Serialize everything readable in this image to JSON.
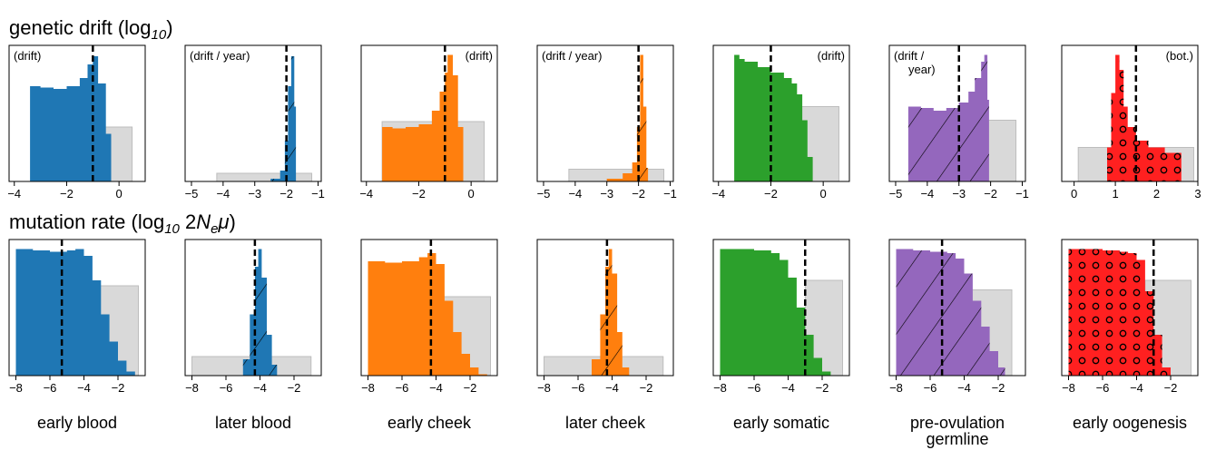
{
  "row_titles": {
    "drift_prefix": "genetic drift (log",
    "drift_base": "10",
    "drift_suffix": ")",
    "mut_prefix": "mutation rate (log",
    "mut_base": "10",
    "mut_mid": " 2",
    "mut_N": "N",
    "mut_e": "e",
    "mut_mu": "μ",
    "mut_suffix": ")"
  },
  "column_labels": [
    [
      "early blood"
    ],
    [
      "later blood"
    ],
    [
      "early cheek"
    ],
    [
      "later cheek"
    ],
    [
      "early somatic"
    ],
    [
      "pre-ovulation",
      "germline"
    ],
    [
      "early oogenesis"
    ]
  ],
  "chart_data": [
    {
      "row": "genetic drift",
      "column": "early blood",
      "type": "area",
      "xlim": [
        -4.2,
        1.0
      ],
      "xticks": [
        -4,
        -2,
        0
      ],
      "annotation": [
        "(drift)"
      ],
      "annotation_pos": "top-left",
      "color": "#1f77b4",
      "pattern": "none",
      "dashed_line": -1.0,
      "prior_box": {
        "x0": -0.7,
        "x1": 0.5,
        "height": 0.4
      },
      "hist_x": [
        -3.4,
        -3.0,
        -2.5,
        -2.0,
        -1.5,
        -1.2,
        -1.0,
        -0.8,
        -0.5,
        -0.3
      ],
      "hist_y": [
        0.7,
        0.69,
        0.68,
        0.7,
        0.76,
        0.86,
        0.92,
        0.72,
        0.35,
        0.0
      ]
    },
    {
      "row": "genetic drift",
      "column": "later blood",
      "type": "area",
      "xlim": [
        -5.2,
        -0.9
      ],
      "xticks": [
        -5,
        -4,
        -3,
        -2,
        -1
      ],
      "annotation": [
        "(drift / year)"
      ],
      "annotation_pos": "top-left",
      "color": "#1f77b4",
      "pattern": "hatch",
      "dashed_line": -2.0,
      "prior_box": {
        "x0": -4.2,
        "x1": -1.2,
        "height": 0.06
      },
      "hist_x": [
        -3.5,
        -2.5,
        -2.2,
        -2.05,
        -1.95,
        -1.85,
        -1.75,
        -1.7
      ],
      "hist_y": [
        0.0,
        0.02,
        0.08,
        0.3,
        0.7,
        0.92,
        0.55,
        0.0
      ]
    },
    {
      "row": "genetic drift",
      "column": "early cheek",
      "type": "area",
      "xlim": [
        -4.2,
        1.0
      ],
      "xticks": [
        -4,
        -2,
        0
      ],
      "annotation": [
        "(drift)"
      ],
      "annotation_pos": "top-right",
      "color": "#ff7f0e",
      "pattern": "none",
      "dashed_line": -1.0,
      "prior_box": {
        "x0": -3.4,
        "x1": 0.5,
        "height": 0.44
      },
      "hist_x": [
        -3.4,
        -3.0,
        -2.5,
        -2.0,
        -1.5,
        -1.2,
        -1.0,
        -0.9,
        -0.7,
        -0.5,
        -0.3
      ],
      "hist_y": [
        0.4,
        0.39,
        0.4,
        0.42,
        0.52,
        0.66,
        0.8,
        0.93,
        0.78,
        0.4,
        0.0
      ]
    },
    {
      "row": "genetic drift",
      "column": "later cheek",
      "type": "area",
      "xlim": [
        -5.2,
        -0.9
      ],
      "xticks": [
        -5,
        -4,
        -3,
        -2,
        -1
      ],
      "annotation": [
        "(drift / year)"
      ],
      "annotation_pos": "top-left",
      "color": "#ff7f0e",
      "pattern": "hatch",
      "dashed_line": -2.0,
      "prior_box": {
        "x0": -4.2,
        "x1": -1.2,
        "height": 0.09
      },
      "hist_x": [
        -4.0,
        -3.0,
        -2.5,
        -2.2,
        -2.05,
        -1.95,
        -1.85,
        -1.75,
        -1.7
      ],
      "hist_y": [
        0.0,
        0.02,
        0.06,
        0.14,
        0.4,
        0.93,
        0.55,
        0.1,
        0.0
      ]
    },
    {
      "row": "genetic drift",
      "column": "early somatic",
      "type": "area",
      "xlim": [
        -4.2,
        1.0
      ],
      "xticks": [
        -4,
        -2,
        0
      ],
      "annotation": [
        "(drift)"
      ],
      "annotation_pos": "top-right",
      "color": "#2ca02c",
      "pattern": "none",
      "dashed_line": -2.0,
      "prior_box": {
        "x0": -1.3,
        "x1": 0.6,
        "height": 0.55
      },
      "hist_x": [
        -3.4,
        -3.2,
        -3.0,
        -2.5,
        -2.0,
        -1.5,
        -1.2,
        -1.0,
        -0.8,
        -0.6,
        -0.4
      ],
      "hist_y": [
        0.93,
        0.9,
        0.88,
        0.84,
        0.8,
        0.76,
        0.72,
        0.64,
        0.45,
        0.18,
        0.0
      ]
    },
    {
      "row": "genetic drift",
      "column": "pre-ovulation germline",
      "type": "area",
      "xlim": [
        -5.2,
        -0.9
      ],
      "xticks": [
        -5,
        -4,
        -3,
        -2,
        -1
      ],
      "annotation": [
        "(drift /",
        "year)"
      ],
      "annotation_pos": "top-left",
      "color": "#9467bd",
      "pattern": "hatch",
      "dashed_line": -3.0,
      "prior_box": {
        "x0": -2.4,
        "x1": -1.2,
        "height": 0.45
      },
      "hist_x": [
        -4.6,
        -4.2,
        -3.8,
        -3.4,
        -3.0,
        -2.7,
        -2.5,
        -2.3,
        -2.2,
        -2.1,
        -2.05
      ],
      "hist_y": [
        0.55,
        0.54,
        0.52,
        0.54,
        0.58,
        0.66,
        0.76,
        0.88,
        0.93,
        0.6,
        0.0
      ]
    },
    {
      "row": "genetic drift",
      "column": "early oogenesis",
      "type": "area",
      "xlim": [
        -0.3,
        3.0
      ],
      "xticks": [
        0,
        1,
        2,
        3
      ],
      "annotation": [
        "(bot.)"
      ],
      "annotation_pos": "top-right",
      "color": "#ff2020",
      "pattern": "dots",
      "dashed_line": 1.5,
      "prior_box": {
        "x0": 0.1,
        "x1": 2.9,
        "height": 0.25
      },
      "hist_x": [
        0.65,
        0.8,
        0.9,
        1.0,
        1.1,
        1.2,
        1.3,
        1.5,
        1.8,
        2.2,
        2.6
      ],
      "hist_y": [
        0.0,
        0.25,
        0.65,
        0.93,
        0.82,
        0.55,
        0.4,
        0.3,
        0.25,
        0.21,
        0.16
      ]
    },
    {
      "row": "mutation rate",
      "column": "early blood",
      "type": "area",
      "xlim": [
        -8.4,
        -0.4
      ],
      "xticks": [
        -8,
        -6,
        -4,
        -2
      ],
      "annotation": [],
      "color": "#1f77b4",
      "pattern": "none",
      "dashed_line": -5.3,
      "prior_box": {
        "x0": -3.5,
        "x1": -0.8,
        "height": 0.66
      },
      "hist_x": [
        -8.0,
        -7.0,
        -6.0,
        -5.0,
        -4.5,
        -4.0,
        -3.5,
        -3.0,
        -2.5,
        -2.0,
        -1.5,
        -1.0
      ],
      "hist_y": [
        0.93,
        0.92,
        0.91,
        0.92,
        0.93,
        0.88,
        0.7,
        0.45,
        0.25,
        0.11,
        0.03,
        0.0
      ]
    },
    {
      "row": "mutation rate",
      "column": "later blood",
      "type": "area",
      "xlim": [
        -8.4,
        -0.4
      ],
      "xticks": [
        -8,
        -6,
        -4,
        -2
      ],
      "annotation": [],
      "color": "#1f77b4",
      "pattern": "hatch",
      "dashed_line": -4.3,
      "prior_box": {
        "x0": -8.0,
        "x1": -1.0,
        "height": 0.14
      },
      "hist_x": [
        -6.0,
        -5.0,
        -4.6,
        -4.3,
        -4.1,
        -3.9,
        -3.6,
        -3.3,
        -3.0
      ],
      "hist_y": [
        0.0,
        0.12,
        0.45,
        0.8,
        0.93,
        0.72,
        0.3,
        0.08,
        0.0
      ]
    },
    {
      "row": "mutation rate",
      "column": "early cheek",
      "type": "area",
      "xlim": [
        -8.4,
        -0.4
      ],
      "xticks": [
        -8,
        -6,
        -4,
        -2
      ],
      "annotation": [],
      "color": "#ff7f0e",
      "pattern": "none",
      "dashed_line": -4.3,
      "prior_box": {
        "x0": -4.0,
        "x1": -0.8,
        "height": 0.58
      },
      "hist_x": [
        -8.0,
        -7.0,
        -6.0,
        -5.0,
        -4.5,
        -4.0,
        -3.5,
        -3.0,
        -2.5,
        -2.0,
        -1.5,
        -1.0
      ],
      "hist_y": [
        0.84,
        0.83,
        0.84,
        0.87,
        0.9,
        0.82,
        0.55,
        0.32,
        0.16,
        0.06,
        0.01,
        0.0
      ]
    },
    {
      "row": "mutation rate",
      "column": "later cheek",
      "type": "area",
      "xlim": [
        -8.4,
        -0.4
      ],
      "xticks": [
        -8,
        -6,
        -4,
        -2
      ],
      "annotation": [],
      "color": "#ff7f0e",
      "pattern": "hatch",
      "dashed_line": -4.3,
      "prior_box": {
        "x0": -8.0,
        "x1": -1.0,
        "height": 0.14
      },
      "hist_x": [
        -6.5,
        -5.2,
        -4.7,
        -4.4,
        -4.2,
        -4.0,
        -3.7,
        -3.4,
        -3.0
      ],
      "hist_y": [
        0.0,
        0.12,
        0.45,
        0.8,
        0.93,
        0.75,
        0.32,
        0.06,
        0.0
      ]
    },
    {
      "row": "mutation rate",
      "column": "early somatic",
      "type": "area",
      "xlim": [
        -8.4,
        -0.4
      ],
      "xticks": [
        -8,
        -6,
        -4,
        -2
      ],
      "annotation": [],
      "color": "#2ca02c",
      "pattern": "none",
      "dashed_line": -3.0,
      "prior_box": {
        "x0": -3.0,
        "x1": -0.8,
        "height": 0.7
      },
      "hist_x": [
        -8.0,
        -7.0,
        -6.0,
        -5.0,
        -4.5,
        -4.0,
        -3.5,
        -3.0,
        -2.5,
        -2.0,
        -1.5
      ],
      "hist_y": [
        0.93,
        0.93,
        0.92,
        0.9,
        0.85,
        0.72,
        0.5,
        0.3,
        0.13,
        0.03,
        0.0
      ]
    },
    {
      "row": "mutation rate",
      "column": "pre-ovulation germline",
      "type": "area",
      "xlim": [
        -8.4,
        -0.4
      ],
      "xticks": [
        -8,
        -6,
        -4,
        -2
      ],
      "annotation": [],
      "color": "#9467bd",
      "pattern": "hatch",
      "dashed_line": -5.3,
      "prior_box": {
        "x0": -4.0,
        "x1": -1.2,
        "height": 0.63
      },
      "hist_x": [
        -8.0,
        -7.0,
        -6.0,
        -5.0,
        -4.5,
        -4.0,
        -3.5,
        -3.0,
        -2.5,
        -2.0,
        -1.6
      ],
      "hist_y": [
        0.93,
        0.92,
        0.91,
        0.9,
        0.86,
        0.75,
        0.55,
        0.36,
        0.18,
        0.06,
        0.0
      ]
    },
    {
      "row": "mutation rate",
      "column": "early oogenesis",
      "type": "area",
      "xlim": [
        -8.4,
        -0.4
      ],
      "xticks": [
        -8,
        -6,
        -4,
        -2
      ],
      "annotation": [],
      "color": "#ff2020",
      "pattern": "dots",
      "dashed_line": -3.0,
      "prior_box": {
        "x0": -3.5,
        "x1": -0.8,
        "height": 0.7
      },
      "hist_x": [
        -8.0,
        -7.0,
        -6.0,
        -5.0,
        -4.5,
        -4.0,
        -3.5,
        -3.0,
        -2.5,
        -2.0
      ],
      "hist_y": [
        0.93,
        0.93,
        0.92,
        0.91,
        0.9,
        0.85,
        0.62,
        0.3,
        0.06,
        0.0
      ]
    }
  ]
}
